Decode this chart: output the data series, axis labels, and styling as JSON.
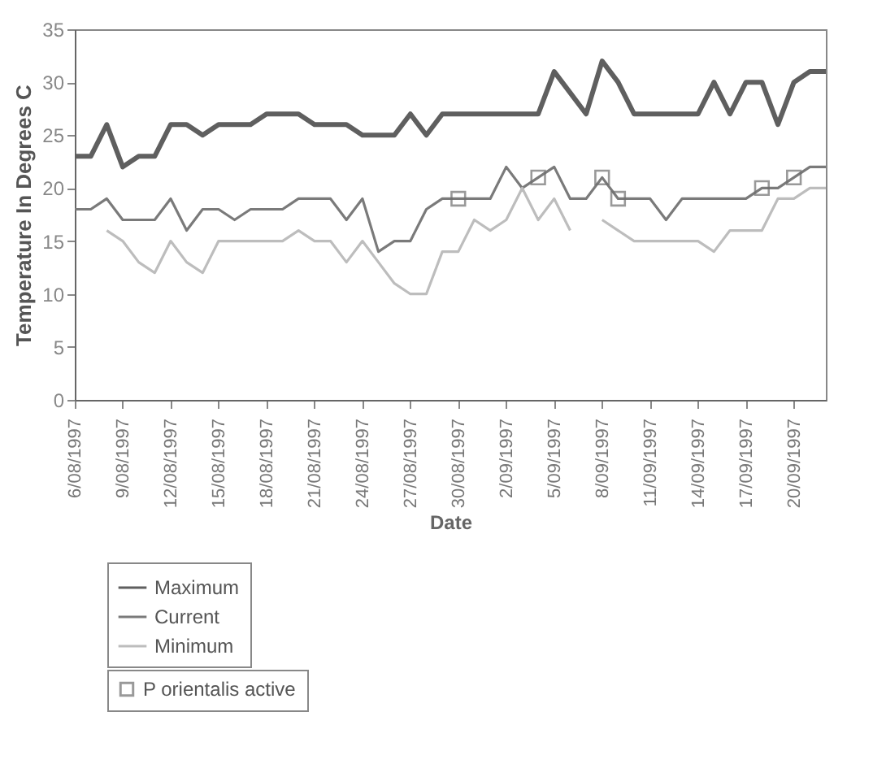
{
  "chart_data": {
    "type": "line",
    "xlabel": "Date",
    "ylabel": "Temperature In Degrees C",
    "x": [
      "1997-08-06",
      "1997-08-07",
      "1997-08-08",
      "1997-08-09",
      "1997-08-10",
      "1997-08-11",
      "1997-08-12",
      "1997-08-13",
      "1997-08-14",
      "1997-08-15",
      "1997-08-16",
      "1997-08-17",
      "1997-08-18",
      "1997-08-19",
      "1997-08-20",
      "1997-08-21",
      "1997-08-22",
      "1997-08-23",
      "1997-08-24",
      "1997-08-25",
      "1997-08-26",
      "1997-08-27",
      "1997-08-28",
      "1997-08-29",
      "1997-08-30",
      "1997-08-31",
      "1997-09-01",
      "1997-09-02",
      "1997-09-03",
      "1997-09-04",
      "1997-09-05",
      "1997-09-06",
      "1997-09-07",
      "1997-09-08",
      "1997-09-09",
      "1997-09-10",
      "1997-09-11",
      "1997-09-12",
      "1997-09-13",
      "1997-09-14",
      "1997-09-15",
      "1997-09-16",
      "1997-09-17",
      "1997-09-18",
      "1997-09-19",
      "1997-09-20",
      "1997-09-21",
      "1997-09-22"
    ],
    "series": [
      {
        "name": "Maximum",
        "color": "#5f5f5f",
        "values": [
          23,
          23,
          26,
          22,
          23,
          23,
          26,
          26,
          25,
          26,
          26,
          26,
          27,
          27,
          27,
          26,
          26,
          26,
          25,
          25,
          25,
          27,
          25,
          27,
          27,
          27,
          27,
          27,
          27,
          27,
          31,
          29,
          27,
          32,
          30,
          27,
          27,
          27,
          27,
          27,
          30,
          27,
          30,
          30,
          26,
          30,
          31,
          31
        ]
      },
      {
        "name": "Current",
        "color": "#7a7a7a",
        "values": [
          18,
          18,
          19,
          17,
          17,
          17,
          19,
          16,
          18,
          18,
          17,
          18,
          18,
          18,
          19,
          19,
          19,
          17,
          19,
          14,
          15,
          15,
          18,
          19,
          19,
          19,
          19,
          22,
          20,
          21,
          22,
          19,
          19,
          21,
          19,
          19,
          19,
          17,
          19,
          19,
          19,
          19,
          19,
          20,
          20,
          21,
          22,
          22
        ]
      },
      {
        "name": "Minimum",
        "color": "#bdbdbd",
        "values": [
          null,
          null,
          16,
          15,
          13,
          12,
          15,
          13,
          12,
          15,
          15,
          15,
          15,
          15,
          16,
          15,
          15,
          13,
          15,
          13,
          11,
          10,
          10,
          14,
          14,
          17,
          16,
          17,
          20,
          17,
          19,
          16,
          null,
          17,
          16,
          15,
          15,
          15,
          15,
          15,
          14,
          16,
          16,
          16,
          19,
          19,
          20,
          20
        ]
      },
      {
        "name": "P orientalis active",
        "type": "scatter",
        "marker": "square",
        "color": "#6f6f6f",
        "x": [
          "1997-08-30",
          "1997-09-04",
          "1997-09-08",
          "1997-09-09",
          "1997-09-18",
          "1997-09-20"
        ],
        "values": [
          19,
          21,
          21,
          19,
          20,
          21
        ]
      }
    ],
    "xlim": [
      "1997-08-06",
      "1997-09-22"
    ],
    "xticks": [
      {
        "value": "1997-08-06",
        "label": "6/08/1997"
      },
      {
        "value": "1997-08-09",
        "label": "9/08/1997"
      },
      {
        "value": "1997-08-12",
        "label": "12/08/1997"
      },
      {
        "value": "1997-08-15",
        "label": "15/08/1997"
      },
      {
        "value": "1997-08-18",
        "label": "18/08/1997"
      },
      {
        "value": "1997-08-21",
        "label": "21/08/1997"
      },
      {
        "value": "1997-08-24",
        "label": "24/08/1997"
      },
      {
        "value": "1997-08-27",
        "label": "27/08/1997"
      },
      {
        "value": "1997-08-30",
        "label": "30/08/1997"
      },
      {
        "value": "1997-09-02",
        "label": "2/09/1997"
      },
      {
        "value": "1997-09-05",
        "label": "5/09/1997"
      },
      {
        "value": "1997-09-08",
        "label": "8/09/1997"
      },
      {
        "value": "1997-09-11",
        "label": "11/09/1997"
      },
      {
        "value": "1997-09-14",
        "label": "14/09/1997"
      },
      {
        "value": "1997-09-17",
        "label": "17/09/1997"
      },
      {
        "value": "1997-09-20",
        "label": "20/09/1997"
      }
    ],
    "ylim": [
      0,
      35
    ],
    "yticks": [
      0,
      5,
      10,
      15,
      20,
      25,
      30,
      35
    ],
    "grid": false,
    "legend": "bottom left",
    "marker": "none",
    "line_style": "solid"
  }
}
